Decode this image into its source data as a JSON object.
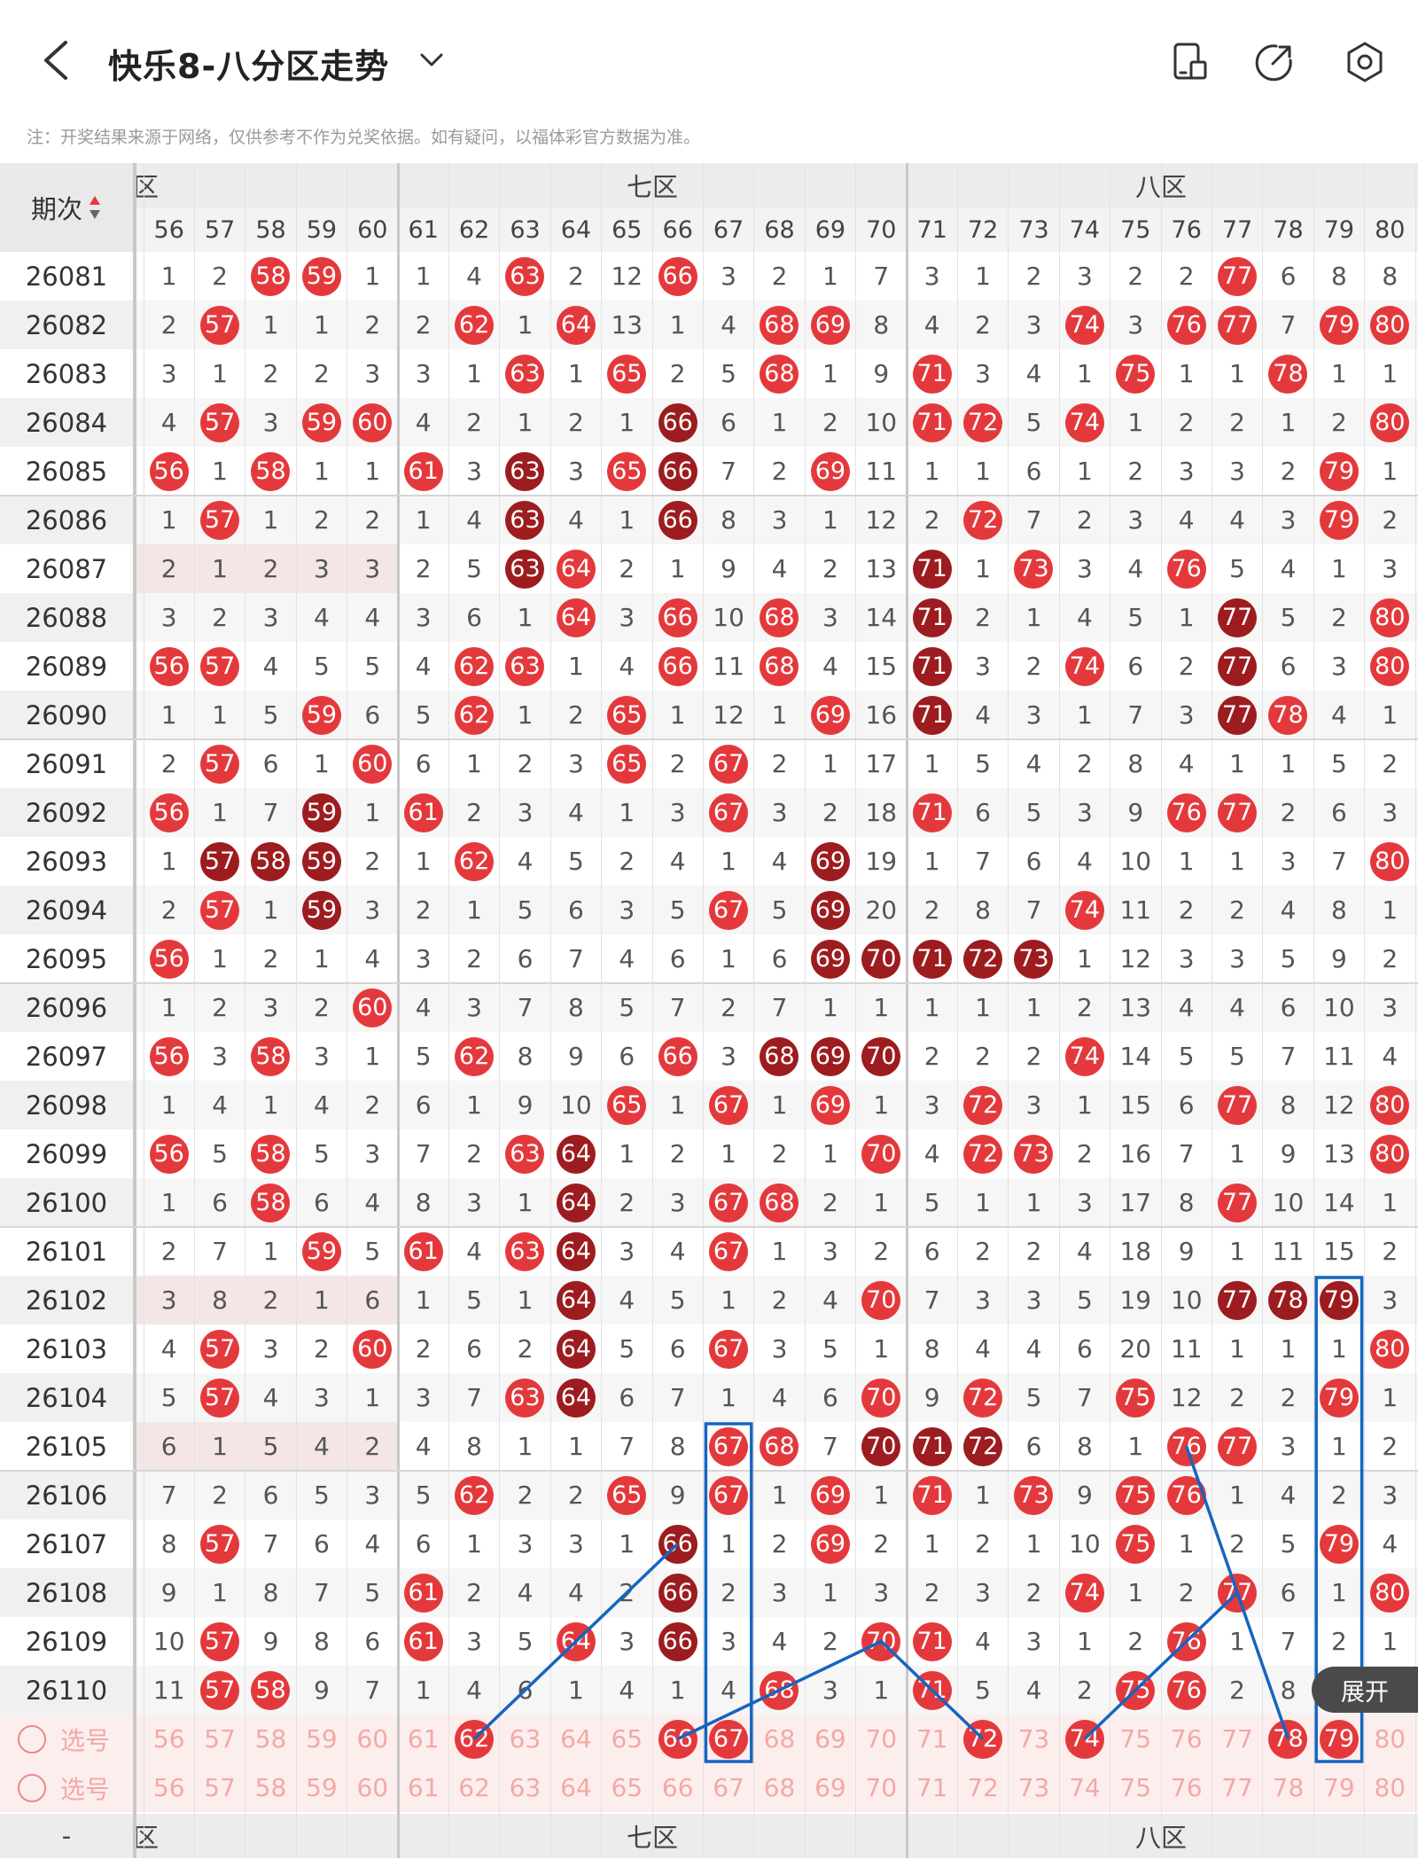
{
  "header": {
    "title": "快乐8-八分区走势",
    "note": "注：开奖结果来源于网络，仅供参考不作为兑奖依据。如有疑问，以福体彩官方数据为准。"
  },
  "columns": {
    "issue_header": "期次",
    "first_number": 56,
    "last_number": 80
  },
  "zones": [
    {
      "name": "六区",
      "start": 56,
      "end": 60,
      "visible_label": "区"
    },
    {
      "name": "七区",
      "start": 61,
      "end": 70,
      "visible_label": "七区"
    },
    {
      "name": "八区",
      "start": 71,
      "end": 80,
      "visible_label": "八区"
    }
  ],
  "ball_colors": {
    "normal": "#e4393c",
    "dark": "#9c1c1f",
    "select_text": "#f2a9a6",
    "highlight_row": "#f5e6e6"
  },
  "rows": [
    {
      "issue": "26081",
      "cells": [
        "1",
        "2",
        "h",
        "h",
        "1",
        "1",
        "4",
        "h",
        "2",
        "12",
        "h",
        "3",
        "2",
        "1",
        "7",
        "3",
        "1",
        "2",
        "3",
        "2",
        "2",
        "h",
        "6",
        "8",
        "8"
      ]
    },
    {
      "issue": "26082",
      "cells": [
        "2",
        "h",
        "1",
        "1",
        "2",
        "2",
        "h",
        "1",
        "h",
        "13",
        "1",
        "4",
        "h",
        "h",
        "8",
        "4",
        "2",
        "3",
        "h",
        "3",
        "h",
        "h",
        "7",
        "h",
        "h"
      ]
    },
    {
      "issue": "26083",
      "cells": [
        "3",
        "1",
        "2",
        "2",
        "3",
        "3",
        "1",
        "h",
        "1",
        "h",
        "2",
        "5",
        "h",
        "1",
        "9",
        "h",
        "3",
        "4",
        "1",
        "h",
        "1",
        "1",
        "h",
        "1",
        "1"
      ]
    },
    {
      "issue": "26084",
      "cells": [
        "4",
        "h",
        "3",
        "h",
        "h",
        "4",
        "2",
        "1",
        "2",
        "1",
        "d",
        "6",
        "1",
        "2",
        "10",
        "h",
        "h",
        "5",
        "h",
        "1",
        "2",
        "2",
        "1",
        "2",
        "h"
      ]
    },
    {
      "issue": "26085",
      "cells": [
        "h",
        "1",
        "h",
        "1",
        "1",
        "h",
        "3",
        "d",
        "3",
        "h",
        "d",
        "7",
        "2",
        "h",
        "11",
        "1",
        "1",
        "6",
        "1",
        "2",
        "3",
        "3",
        "2",
        "h",
        "1"
      ]
    },
    {
      "issue": "26086",
      "cells": [
        "1",
        "h",
        "1",
        "2",
        "2",
        "1",
        "4",
        "d",
        "4",
        "1",
        "d",
        "8",
        "3",
        "1",
        "12",
        "2",
        "h",
        "7",
        "2",
        "3",
        "4",
        "4",
        "3",
        "h",
        "2"
      ]
    },
    {
      "issue": "26087",
      "cells": [
        "2",
        "1",
        "2",
        "3",
        "3",
        "2",
        "5",
        "d",
        "h",
        "2",
        "1",
        "9",
        "4",
        "2",
        "13",
        "d",
        "1",
        "h",
        "3",
        "4",
        "h",
        "5",
        "4",
        "1",
        "3"
      ]
    },
    {
      "issue": "26088",
      "cells": [
        "3",
        "2",
        "3",
        "4",
        "4",
        "3",
        "6",
        "1",
        "h",
        "3",
        "h",
        "10",
        "h",
        "3",
        "14",
        "d",
        "2",
        "1",
        "4",
        "5",
        "1",
        "d",
        "5",
        "2",
        "h"
      ]
    },
    {
      "issue": "26089",
      "cells": [
        "h",
        "h",
        "4",
        "5",
        "5",
        "4",
        "h",
        "h",
        "1",
        "4",
        "h",
        "11",
        "h",
        "4",
        "15",
        "d",
        "3",
        "2",
        "h",
        "6",
        "2",
        "d",
        "6",
        "3",
        "h"
      ]
    },
    {
      "issue": "26090",
      "cells": [
        "1",
        "1",
        "5",
        "h",
        "6",
        "5",
        "h",
        "1",
        "2",
        "h",
        "1",
        "12",
        "1",
        "h",
        "16",
        "d",
        "4",
        "3",
        "1",
        "7",
        "3",
        "d",
        "h",
        "4",
        "1"
      ]
    },
    {
      "issue": "26091",
      "cells": [
        "2",
        "h",
        "6",
        "1",
        "h",
        "6",
        "1",
        "2",
        "3",
        "h",
        "2",
        "h",
        "2",
        "1",
        "17",
        "1",
        "5",
        "4",
        "2",
        "8",
        "4",
        "1",
        "1",
        "5",
        "2"
      ]
    },
    {
      "issue": "26092",
      "cells": [
        "h",
        "1",
        "7",
        "d",
        "1",
        "h",
        "2",
        "3",
        "4",
        "1",
        "3",
        "h",
        "3",
        "2",
        "18",
        "h",
        "6",
        "5",
        "3",
        "9",
        "h",
        "h",
        "2",
        "6",
        "3"
      ]
    },
    {
      "issue": "26093",
      "cells": [
        "1",
        "d",
        "d",
        "d",
        "2",
        "1",
        "h",
        "4",
        "5",
        "2",
        "4",
        "1",
        "4",
        "d",
        "19",
        "1",
        "7",
        "6",
        "4",
        "10",
        "1",
        "1",
        "3",
        "7",
        "h"
      ]
    },
    {
      "issue": "26094",
      "cells": [
        "2",
        "h",
        "1",
        "d",
        "3",
        "2",
        "1",
        "5",
        "6",
        "3",
        "5",
        "h",
        "5",
        "d",
        "20",
        "2",
        "8",
        "7",
        "h",
        "11",
        "2",
        "2",
        "4",
        "8",
        "1"
      ]
    },
    {
      "issue": "26095",
      "cells": [
        "h",
        "1",
        "2",
        "1",
        "4",
        "3",
        "2",
        "6",
        "7",
        "4",
        "6",
        "1",
        "6",
        "d",
        "d",
        "d",
        "d",
        "d",
        "1",
        "12",
        "3",
        "3",
        "5",
        "9",
        "2"
      ]
    },
    {
      "issue": "26096",
      "cells": [
        "1",
        "2",
        "3",
        "2",
        "h",
        "4",
        "3",
        "7",
        "8",
        "5",
        "7",
        "2",
        "7",
        "1",
        "1",
        "1",
        "1",
        "1",
        "2",
        "13",
        "4",
        "4",
        "6",
        "10",
        "3"
      ]
    },
    {
      "issue": "26097",
      "cells": [
        "h",
        "3",
        "h",
        "3",
        "1",
        "5",
        "h",
        "8",
        "9",
        "6",
        "h",
        "3",
        "d",
        "d",
        "d",
        "2",
        "2",
        "2",
        "h",
        "14",
        "5",
        "5",
        "7",
        "11",
        "4"
      ]
    },
    {
      "issue": "26098",
      "cells": [
        "1",
        "4",
        "1",
        "4",
        "2",
        "6",
        "1",
        "9",
        "10",
        "h",
        "1",
        "h",
        "1",
        "h",
        "1",
        "3",
        "h",
        "3",
        "1",
        "15",
        "6",
        "h",
        "8",
        "12",
        "h"
      ]
    },
    {
      "issue": "26099",
      "cells": [
        "h",
        "5",
        "h",
        "5",
        "3",
        "7",
        "2",
        "h",
        "d",
        "1",
        "2",
        "1",
        "2",
        "1",
        "h",
        "4",
        "h",
        "h",
        "2",
        "16",
        "7",
        "1",
        "9",
        "13",
        "h"
      ]
    },
    {
      "issue": "26100",
      "cells": [
        "1",
        "6",
        "h",
        "6",
        "4",
        "8",
        "3",
        "1",
        "d",
        "2",
        "3",
        "h",
        "h",
        "2",
        "1",
        "5",
        "1",
        "1",
        "3",
        "17",
        "8",
        "h",
        "10",
        "14",
        "1"
      ]
    },
    {
      "issue": "26101",
      "cells": [
        "2",
        "7",
        "1",
        "h",
        "5",
        "h",
        "4",
        "h",
        "d",
        "3",
        "4",
        "h",
        "1",
        "3",
        "2",
        "6",
        "2",
        "2",
        "4",
        "18",
        "9",
        "1",
        "11",
        "15",
        "2"
      ]
    },
    {
      "issue": "26102",
      "cells": [
        "3",
        "8",
        "2",
        "1",
        "6",
        "1",
        "5",
        "1",
        "d",
        "4",
        "5",
        "1",
        "2",
        "4",
        "h",
        "7",
        "3",
        "3",
        "5",
        "19",
        "10",
        "d",
        "d",
        "d",
        "3"
      ]
    },
    {
      "issue": "26103",
      "cells": [
        "4",
        "h",
        "3",
        "2",
        "h",
        "2",
        "6",
        "2",
        "d",
        "5",
        "6",
        "h",
        "3",
        "5",
        "1",
        "8",
        "4",
        "4",
        "6",
        "20",
        "11",
        "1",
        "1",
        "1",
        "h"
      ]
    },
    {
      "issue": "26104",
      "cells": [
        "5",
        "h",
        "4",
        "3",
        "1",
        "3",
        "7",
        "h",
        "d",
        "6",
        "7",
        "1",
        "4",
        "6",
        "h",
        "9",
        "h",
        "5",
        "7",
        "h",
        "12",
        "2",
        "2",
        "h",
        "1"
      ]
    },
    {
      "issue": "26105",
      "cells": [
        "6",
        "1",
        "5",
        "4",
        "2",
        "4",
        "8",
        "1",
        "1",
        "7",
        "8",
        "h",
        "h",
        "7",
        "d",
        "d",
        "d",
        "6",
        "8",
        "1",
        "h",
        "h",
        "3",
        "1",
        "2"
      ]
    },
    {
      "issue": "26106",
      "cells": [
        "7",
        "2",
        "6",
        "5",
        "3",
        "5",
        "h",
        "2",
        "2",
        "h",
        "9",
        "h",
        "1",
        "h",
        "1",
        "h",
        "1",
        "h",
        "9",
        "h",
        "h",
        "1",
        "4",
        "2",
        "3"
      ]
    },
    {
      "issue": "26107",
      "cells": [
        "8",
        "h",
        "7",
        "6",
        "4",
        "6",
        "1",
        "3",
        "3",
        "1",
        "d",
        "1",
        "2",
        "h",
        "2",
        "1",
        "2",
        "1",
        "10",
        "h",
        "1",
        "2",
        "5",
        "h",
        "4"
      ]
    },
    {
      "issue": "26108",
      "cells": [
        "9",
        "1",
        "8",
        "7",
        "5",
        "h",
        "2",
        "4",
        "4",
        "2",
        "d",
        "2",
        "3",
        "1",
        "3",
        "2",
        "3",
        "2",
        "h",
        "1",
        "2",
        "h",
        "6",
        "1",
        "h"
      ]
    },
    {
      "issue": "26109",
      "cells": [
        "10",
        "h",
        "9",
        "8",
        "6",
        "h",
        "3",
        "5",
        "h",
        "3",
        "d",
        "3",
        "4",
        "2",
        "h",
        "h",
        "4",
        "3",
        "1",
        "2",
        "h",
        "1",
        "7",
        "2",
        "1"
      ]
    },
    {
      "issue": "26110",
      "cells": [
        "11",
        "h",
        "h",
        "9",
        "7",
        "1",
        "4",
        "6",
        "1",
        "4",
        "1",
        "4",
        "h",
        "3",
        "1",
        "h",
        "5",
        "4",
        "2",
        "h",
        "h",
        "2",
        "8",
        "3",
        "2"
      ]
    }
  ],
  "dark_row_issues_left": [
    "26087",
    "26102",
    "26105"
  ],
  "select_rows": [
    {
      "label": "选号",
      "picked": [
        62,
        66,
        67,
        72,
        74,
        78,
        79
      ]
    },
    {
      "label": "选号",
      "picked": []
    }
  ],
  "footer": {
    "expand_label": "展开",
    "left_dash": "-"
  }
}
